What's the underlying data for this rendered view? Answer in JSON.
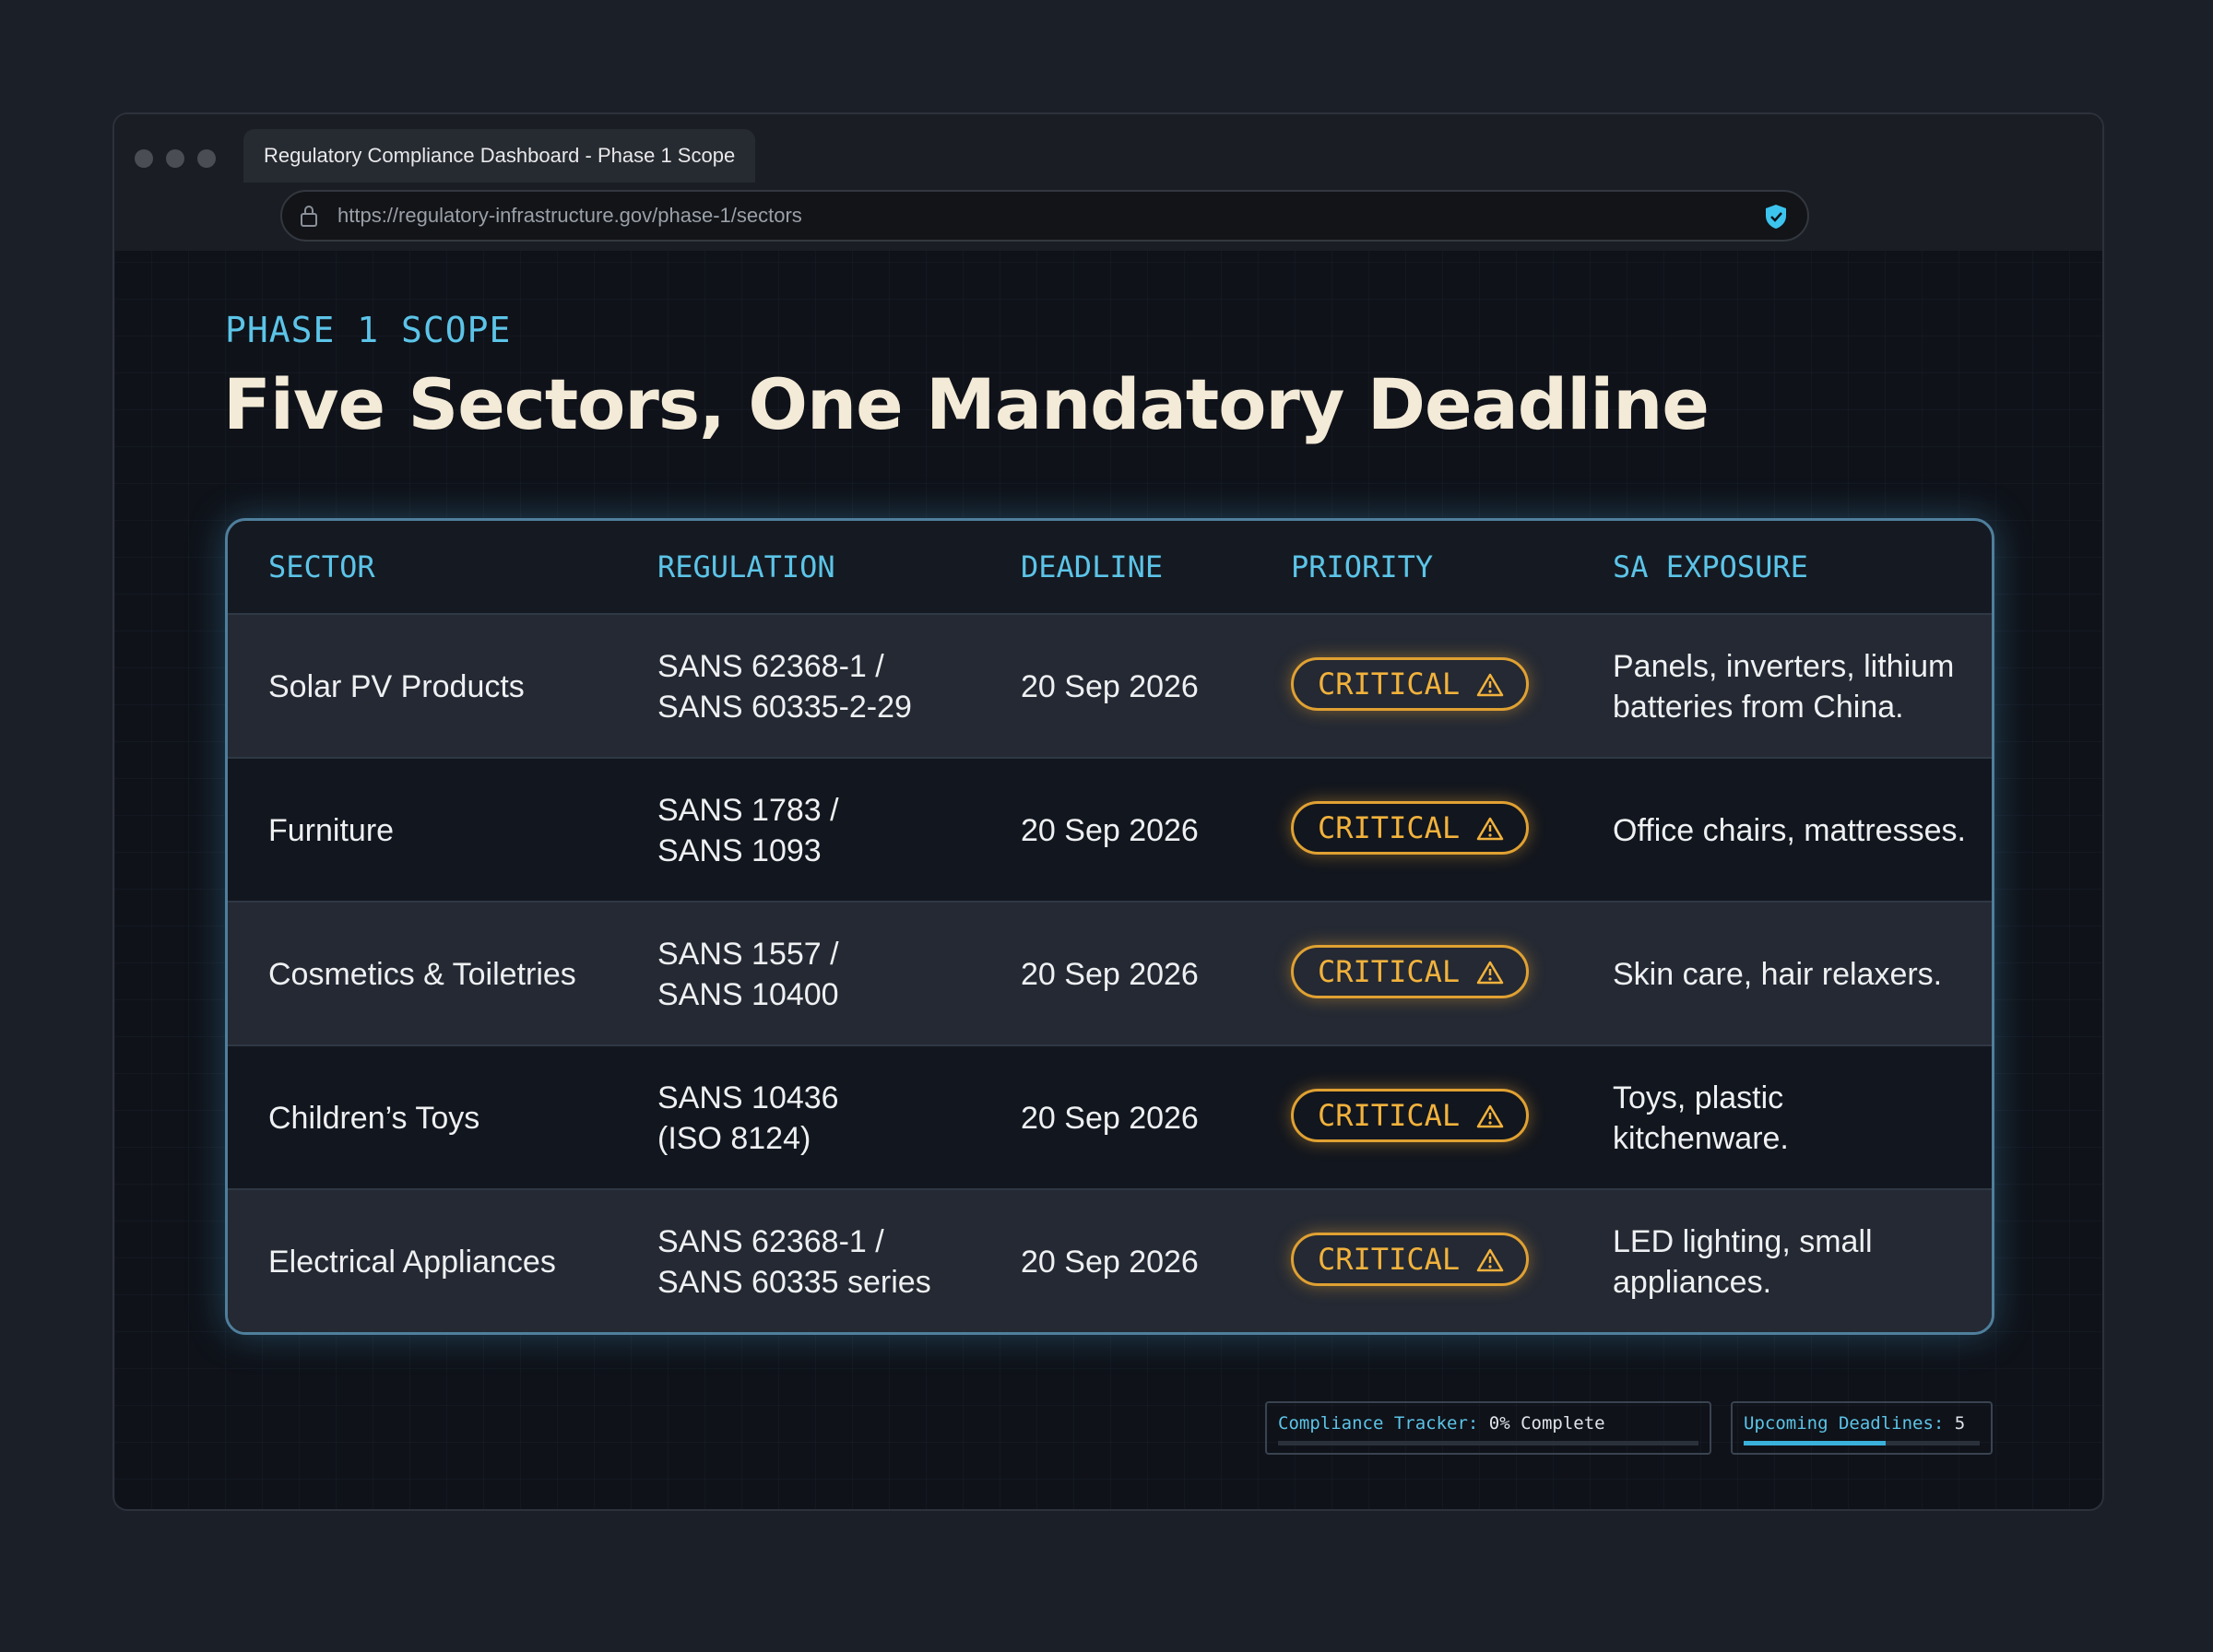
{
  "browser": {
    "tab_title": "Regulatory Compliance Dashboard - Phase 1 Scope",
    "url": "https://regulatory-infrastructure.gov/phase-1/sectors"
  },
  "header": {
    "eyebrow": "PHASE 1 SCOPE",
    "title": "Five Sectors, One Mandatory Deadline"
  },
  "table": {
    "columns": [
      "SECTOR",
      "REGULATION",
      "DEADLINE",
      "PRIORITY",
      "SA EXPOSURE"
    ],
    "rows": [
      {
        "sector": "Solar PV Products",
        "regulation": [
          "SANS 62368-1 /",
          "SANS 60335-2-29"
        ],
        "deadline": "20 Sep 2026",
        "priority": "CRITICAL",
        "exposure": [
          "Panels, inverters, lithium",
          "batteries from China."
        ]
      },
      {
        "sector": "Furniture",
        "regulation": [
          "SANS 1783 /",
          "SANS 1093"
        ],
        "deadline": "20 Sep 2026",
        "priority": "CRITICAL",
        "exposure": [
          "Office chairs, mattresses."
        ]
      },
      {
        "sector": "Cosmetics & Toiletries",
        "regulation": [
          "SANS 1557 /",
          "SANS 10400"
        ],
        "deadline": "20 Sep 2026",
        "priority": "CRITICAL",
        "exposure": [
          "Skin care, hair relaxers."
        ]
      },
      {
        "sector": "Children’s Toys",
        "regulation": [
          "SANS 10436",
          "(ISO 8124)"
        ],
        "deadline": "20 Sep 2026",
        "priority": "CRITICAL",
        "exposure": [
          "Toys, plastic",
          "kitchenware."
        ]
      },
      {
        "sector": "Electrical Appliances",
        "regulation": [
          "SANS 62368-1 /",
          "SANS 60335 series"
        ],
        "deadline": "20 Sep 2026",
        "priority": "CRITICAL",
        "exposure": [
          "LED lighting, small",
          "appliances."
        ]
      }
    ]
  },
  "footer": {
    "tracker_label": "Compliance Tracker:",
    "tracker_value": "0% Complete",
    "deadlines_label": "Upcoming Deadlines:",
    "deadlines_value": "5"
  }
}
